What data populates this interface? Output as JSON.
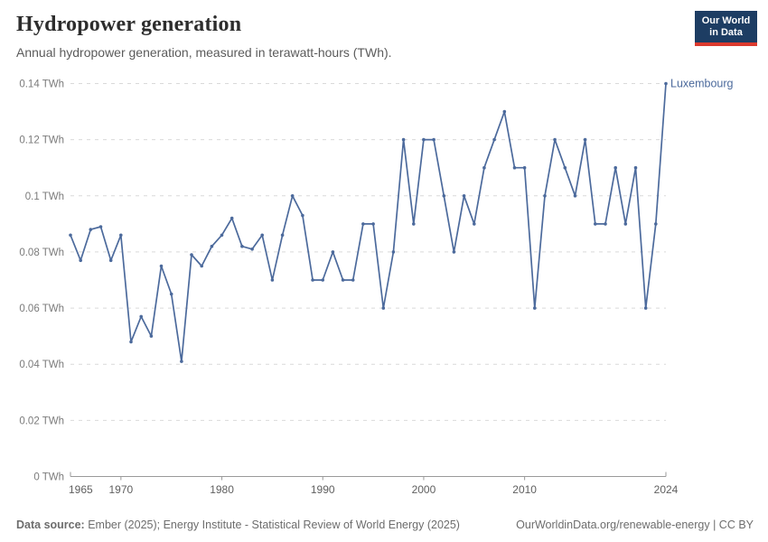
{
  "header": {
    "title": "Hydropower generation",
    "subtitle": "Annual hydropower generation, measured in terawatt-hours (TWh).",
    "logo": {
      "line1": "Our World",
      "line2": "in Data"
    }
  },
  "chart_data": {
    "type": "line",
    "title": "Hydropower generation",
    "subtitle": "Annual hydropower generation, measured in terawatt-hours (TWh).",
    "xlim": [
      1965,
      2024
    ],
    "ylim": [
      0,
      0.14
    ],
    "grid": "horizontal-dashed",
    "legend_position": "end-of-line-label",
    "x": [
      1965,
      1966,
      1967,
      1968,
      1969,
      1970,
      1971,
      1972,
      1973,
      1974,
      1975,
      1976,
      1977,
      1978,
      1979,
      1980,
      1981,
      1982,
      1983,
      1984,
      1985,
      1986,
      1987,
      1988,
      1989,
      1990,
      1991,
      1992,
      1993,
      1994,
      1995,
      1996,
      1997,
      1998,
      1999,
      2000,
      2001,
      2002,
      2003,
      2004,
      2005,
      2006,
      2007,
      2008,
      2009,
      2010,
      2011,
      2012,
      2013,
      2014,
      2015,
      2016,
      2017,
      2018,
      2019,
      2020,
      2021,
      2022,
      2023,
      2024
    ],
    "series": [
      {
        "name": "Luxembourg",
        "color": "#4C6A9C",
        "values": [
          0.086,
          0.077,
          0.088,
          0.089,
          0.077,
          0.086,
          0.048,
          0.057,
          0.05,
          0.075,
          0.065,
          0.041,
          0.079,
          0.075,
          0.082,
          0.086,
          0.092,
          0.082,
          0.081,
          0.086,
          0.07,
          0.086,
          0.1,
          0.093,
          0.07,
          0.07,
          0.08,
          0.07,
          0.07,
          0.09,
          0.09,
          0.06,
          0.08,
          0.12,
          0.09,
          0.12,
          0.12,
          0.1,
          0.08,
          0.1,
          0.09,
          0.11,
          0.12,
          0.13,
          0.11,
          0.11,
          0.06,
          0.1,
          0.12,
          0.11,
          0.1,
          0.12,
          0.09,
          0.09,
          0.11,
          0.09,
          0.11,
          0.06,
          0.09,
          0.14
        ]
      }
    ],
    "y_ticks": [
      {
        "value": 0,
        "label": "0 TWh"
      },
      {
        "value": 0.02,
        "label": "0.02 TWh"
      },
      {
        "value": 0.04,
        "label": "0.04 TWh"
      },
      {
        "value": 0.06,
        "label": "0.06 TWh"
      },
      {
        "value": 0.08,
        "label": "0.08 TWh"
      },
      {
        "value": 0.1,
        "label": "0.1 TWh"
      },
      {
        "value": 0.12,
        "label": "0.12 TWh"
      },
      {
        "value": 0.14,
        "label": "0.14 TWh"
      }
    ],
    "x_ticks": [
      {
        "value": 1965,
        "label": "1965"
      },
      {
        "value": 1970,
        "label": "1970"
      },
      {
        "value": 1980,
        "label": "1980"
      },
      {
        "value": 1990,
        "label": "1990"
      },
      {
        "value": 2000,
        "label": "2000"
      },
      {
        "value": 2010,
        "label": "2010"
      },
      {
        "value": 2024,
        "label": "2024"
      }
    ]
  },
  "footer": {
    "source_label": "Data source:",
    "source_text": " Ember (2025); Energy Institute - Statistical Review of World Energy (2025)",
    "right_text": "OurWorldinData.org/renewable-energy | CC BY"
  }
}
